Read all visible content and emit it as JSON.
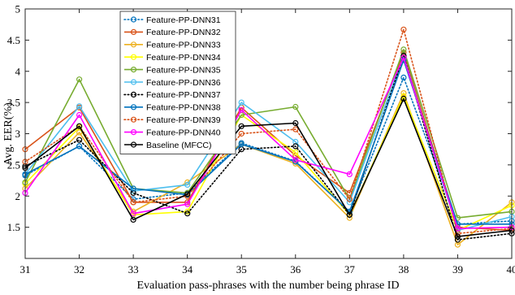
{
  "chart_data": {
    "type": "line",
    "xlabel": "Evaluation pass-phrases with the number being phrase ID",
    "ylabel": "Avg. EER(%)",
    "xlim": [
      31,
      40
    ],
    "ylim": [
      1,
      5
    ],
    "x": [
      31,
      32,
      33,
      34,
      35,
      36,
      37,
      38,
      39,
      40
    ],
    "xticks": [
      "31",
      "32",
      "33",
      "34",
      "35",
      "36",
      "37",
      "38",
      "39",
      "40"
    ],
    "yticks": [
      "1.5",
      "2",
      "2.5",
      "3",
      "3.5",
      "4",
      "4.5",
      "5"
    ],
    "grid": false,
    "legend_position": "top-left",
    "series": [
      {
        "name": "Feature-PP-DNN31",
        "color": "#0072BD",
        "style": "dotted",
        "values": [
          2.33,
          2.8,
          1.95,
          2.05,
          2.85,
          2.56,
          1.75,
          3.9,
          1.55,
          1.6
        ]
      },
      {
        "name": "Feature-PP-DNN32",
        "color": "#D95319",
        "style": "solid",
        "values": [
          2.75,
          3.42,
          1.9,
          1.9,
          3.42,
          2.65,
          2.05,
          4.3,
          1.5,
          1.45
        ]
      },
      {
        "name": "Feature-PP-DNN33",
        "color": "#EDB120",
        "style": "solid",
        "values": [
          2.12,
          3.02,
          1.75,
          2.22,
          2.83,
          2.52,
          1.65,
          3.65,
          1.22,
          1.9
        ]
      },
      {
        "name": "Feature-PP-DNN34",
        "color": "#FFFF00",
        "style": "solid",
        "values": [
          2.2,
          3.1,
          1.7,
          1.75,
          3.3,
          2.7,
          1.7,
          3.6,
          1.45,
          1.85
        ]
      },
      {
        "name": "Feature-PP-DNN35",
        "color": "#77AC30",
        "style": "solid",
        "values": [
          2.22,
          3.87,
          2.12,
          2.05,
          3.3,
          3.43,
          1.95,
          4.35,
          1.65,
          1.75
        ]
      },
      {
        "name": "Feature-PP-DNN36",
        "color": "#4DBEEE",
        "style": "solid",
        "values": [
          2.35,
          3.44,
          2.08,
          2.18,
          3.5,
          2.87,
          1.9,
          4.25,
          1.45,
          1.67
        ]
      },
      {
        "name": "Feature-PP-DNN37",
        "color": "#000000",
        "style": "dotted",
        "values": [
          2.48,
          2.9,
          2.05,
          1.72,
          2.75,
          2.8,
          1.7,
          4.25,
          1.3,
          1.4
        ]
      },
      {
        "name": "Feature-PP-DNN38",
        "color": "#0072BD",
        "style": "solid",
        "values": [
          2.35,
          2.8,
          2.12,
          2.02,
          2.83,
          2.55,
          1.75,
          4.18,
          1.55,
          1.55
        ]
      },
      {
        "name": "Feature-PP-DNN39",
        "color": "#D95319",
        "style": "dotted",
        "values": [
          2.55,
          3.12,
          1.9,
          2.0,
          3.0,
          3.07,
          1.95,
          4.67,
          1.4,
          1.48
        ]
      },
      {
        "name": "Feature-PP-DNN40",
        "color": "#FF00FF",
        "style": "solid",
        "values": [
          2.05,
          3.3,
          1.72,
          1.87,
          3.38,
          2.58,
          2.35,
          4.22,
          1.48,
          1.5
        ]
      },
      {
        "name": "Baseline (MFCC)",
        "color": "#000000",
        "style": "solid",
        "values": [
          2.45,
          3.12,
          1.62,
          2.03,
          3.12,
          3.17,
          1.7,
          3.56,
          1.35,
          1.45
        ]
      }
    ]
  }
}
